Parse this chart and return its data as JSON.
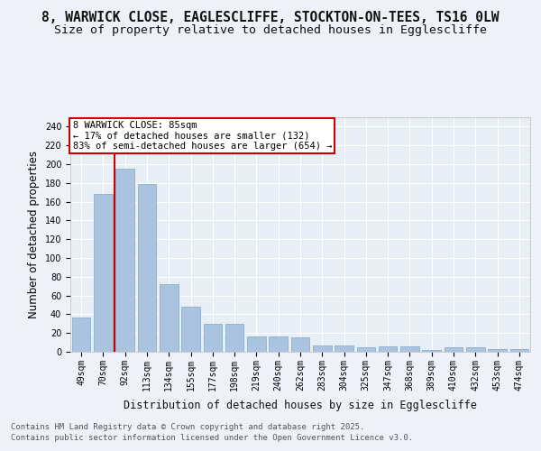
{
  "title_line1": "8, WARWICK CLOSE, EAGLESCLIFFE, STOCKTON-ON-TEES, TS16 0LW",
  "title_line2": "Size of property relative to detached houses in Egglescliffe",
  "xlabel": "Distribution of detached houses by size in Egglescliffe",
  "ylabel": "Number of detached properties",
  "categories": [
    "49sqm",
    "70sqm",
    "92sqm",
    "113sqm",
    "134sqm",
    "155sqm",
    "177sqm",
    "198sqm",
    "219sqm",
    "240sqm",
    "262sqm",
    "283sqm",
    "304sqm",
    "325sqm",
    "347sqm",
    "368sqm",
    "389sqm",
    "410sqm",
    "432sqm",
    "453sqm",
    "474sqm"
  ],
  "values": [
    37,
    168,
    195,
    179,
    72,
    48,
    30,
    30,
    16,
    16,
    15,
    7,
    7,
    5,
    6,
    6,
    2,
    5,
    5,
    3,
    3
  ],
  "bar_color": "#aac4e0",
  "bar_edge_color": "#8ab0cc",
  "vline_color": "#cc0000",
  "annotation_box_color": "#cc0000",
  "background_color": "#eef2f8",
  "plot_bg_color": "#e8eef5",
  "grid_color": "#ffffff",
  "ylim": [
    0,
    250
  ],
  "yticks": [
    0,
    20,
    40,
    60,
    80,
    100,
    120,
    140,
    160,
    180,
    200,
    220,
    240
  ],
  "annotation_line1": "8 WARWICK CLOSE: 85sqm",
  "annotation_line2": "← 17% of detached houses are smaller (132)",
  "annotation_line3": "83% of semi-detached houses are larger (654) →",
  "footer_line1": "Contains HM Land Registry data © Crown copyright and database right 2025.",
  "footer_line2": "Contains public sector information licensed under the Open Government Licence v3.0.",
  "title_fontsize": 10.5,
  "subtitle_fontsize": 9.5,
  "axis_label_fontsize": 8.5,
  "tick_fontsize": 7,
  "annotation_fontsize": 7.5,
  "footer_fontsize": 6.5
}
